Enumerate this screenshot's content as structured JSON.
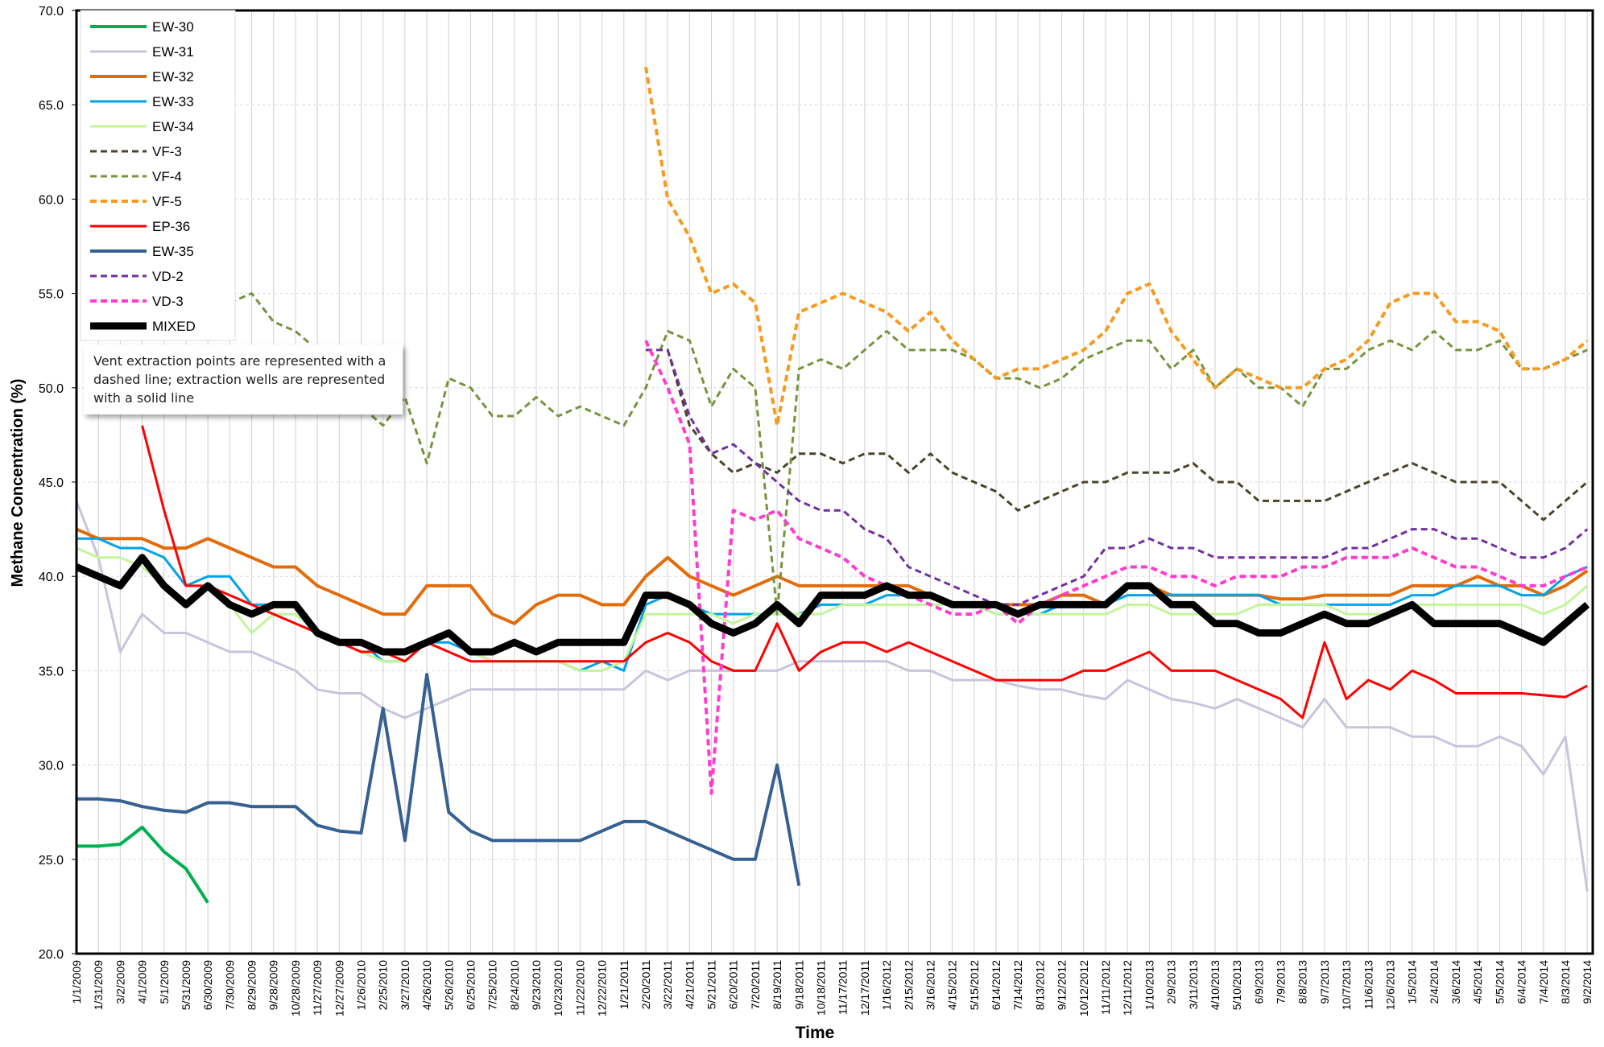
{
  "chart_data": {
    "type": "line",
    "y_label": "Methane Concentration (%)",
    "x_label": "Time",
    "annotation": "Vent extraction points are represented with a dashed line; extraction wells are represented with a solid line",
    "legend": "top-left",
    "grid": true,
    "ylim": [
      20,
      70
    ],
    "yticks": [
      {
        "value": 20,
        "label": "20.0"
      },
      {
        "value": 25,
        "label": "25.0"
      },
      {
        "value": 30,
        "label": "30.0"
      },
      {
        "value": 35,
        "label": "35.0"
      },
      {
        "value": 40,
        "label": "40.0"
      },
      {
        "value": 45,
        "label": "45.0"
      },
      {
        "value": 50,
        "label": "50.0"
      },
      {
        "value": 55,
        "label": "55.0"
      },
      {
        "value": 60,
        "label": "60.0"
      },
      {
        "value": 65,
        "label": "65.0"
      },
      {
        "value": 70,
        "label": "70.0"
      }
    ],
    "categories": [
      "1/1/2009",
      "1/31/2009",
      "3/2/2009",
      "4/1/2009",
      "5/1/2009",
      "5/31/2009",
      "6/30/2009",
      "7/30/2009",
      "8/29/2009",
      "9/28/2009",
      "10/28/2009",
      "11/27/2009",
      "12/27/2009",
      "1/26/2010",
      "2/25/2010",
      "3/27/2010",
      "4/26/2010",
      "5/26/2010",
      "6/25/2010",
      "7/25/2010",
      "8/24/2010",
      "9/23/2010",
      "10/23/2010",
      "11/22/2010",
      "12/22/2010",
      "1/21/2011",
      "2/20/2011",
      "3/22/2011",
      "4/21/2011",
      "5/21/2011",
      "6/20/2011",
      "7/20/2011",
      "8/19/2011",
      "9/18/2011",
      "10/18/2011",
      "11/17/2011",
      "12/17/2011",
      "1/16/2012",
      "2/15/2012",
      "3/16/2012",
      "4/15/2012",
      "5/15/2012",
      "6/14/2012",
      "7/14/2012",
      "8/13/2012",
      "9/12/2012",
      "10/12/2012",
      "11/11/2012",
      "12/11/2012",
      "1/10/2013",
      "2/9/2013",
      "3/11/2013",
      "4/10/2013",
      "5/10/2013",
      "6/9/2013",
      "7/9/2013",
      "8/8/2013",
      "9/7/2013",
      "10/7/2013",
      "11/6/2013",
      "12/6/2013",
      "1/5/2014",
      "2/4/2014",
      "3/6/2014",
      "4/5/2014",
      "5/5/2014",
      "6/4/2014",
      "7/4/2014",
      "8/3/2014",
      "9/2/2014"
    ],
    "series": [
      {
        "name": "EW-30",
        "color": "#00b050",
        "style": "solid",
        "line_width": 4,
        "values": [
          25.7,
          25.7,
          25.8,
          26.7,
          25.4,
          24.5,
          22.7,
          null,
          null,
          null,
          null,
          null,
          null,
          null,
          null,
          null,
          null,
          null,
          null,
          null,
          null,
          null,
          null,
          null,
          null,
          null,
          null,
          null,
          null,
          null,
          null,
          null,
          null,
          null,
          null,
          null,
          null,
          null,
          null,
          null,
          null,
          null,
          null,
          null,
          null,
          null,
          null,
          null,
          null,
          null,
          null,
          null,
          null,
          null,
          null,
          null,
          null,
          null,
          null,
          null,
          null,
          null,
          null,
          null,
          null,
          null,
          null,
          null,
          null,
          null
        ]
      },
      {
        "name": "EW-31",
        "color": "#c9c3dc",
        "style": "solid",
        "line_width": 3,
        "values": [
          44,
          41,
          36,
          38,
          37,
          37,
          36.5,
          36,
          36,
          35.5,
          35,
          34,
          33.8,
          33.8,
          33,
          32.5,
          33,
          33.5,
          34,
          34,
          34,
          34,
          34,
          34,
          34,
          34,
          35,
          34.5,
          35,
          35,
          35,
          35,
          35,
          35.5,
          35.5,
          35.5,
          35.5,
          35.5,
          35,
          35,
          34.5,
          34.5,
          34.5,
          34.2,
          34,
          34,
          33.7,
          33.5,
          34.5,
          34,
          33.5,
          33.3,
          33,
          33.5,
          33,
          32.5,
          32,
          33.5,
          32,
          32,
          32,
          31.5,
          31.5,
          31,
          31,
          31.5,
          31,
          29.5,
          31.5,
          23.3
        ]
      },
      {
        "name": "EW-32",
        "color": "#e36c0a",
        "style": "solid",
        "line_width": 4,
        "values": [
          42.5,
          42,
          42,
          42,
          41.5,
          41.5,
          42,
          41.5,
          41,
          40.5,
          40.5,
          39.5,
          39,
          38.5,
          38,
          38,
          39.5,
          39.5,
          39.5,
          38,
          37.5,
          38.5,
          39,
          39,
          38.5,
          38.5,
          40,
          41,
          40,
          39.5,
          39,
          39.5,
          40,
          39.5,
          39.5,
          39.5,
          39.5,
          39.5,
          39.5,
          39,
          38.5,
          38.5,
          38.5,
          38.5,
          38.5,
          39,
          39,
          38.5,
          39.5,
          39.5,
          39,
          39,
          39,
          39,
          39,
          38.8,
          38.8,
          39,
          39,
          39,
          39,
          39.5,
          39.5,
          39.5,
          40,
          39.5,
          39.5,
          39,
          39.5,
          40.3
        ]
      },
      {
        "name": "EW-33",
        "color": "#00a2e8",
        "style": "solid",
        "line_width": 3,
        "values": [
          42,
          42,
          41.5,
          41.5,
          41,
          39.5,
          40,
          40,
          38.5,
          38.5,
          38.5,
          37,
          36.5,
          36.5,
          35.5,
          35.5,
          36.5,
          36.5,
          36,
          35.5,
          35.5,
          35.5,
          35.5,
          35,
          35.5,
          35,
          38.5,
          39,
          38.5,
          38,
          38,
          38,
          38,
          38,
          38.5,
          38.5,
          38.5,
          39,
          39,
          39,
          38.5,
          38.5,
          38,
          38,
          38,
          38.5,
          38.5,
          38.5,
          39,
          39,
          39,
          39,
          39,
          39,
          39,
          38.5,
          38.5,
          38.5,
          38.5,
          38.5,
          38.5,
          39,
          39,
          39.5,
          39.5,
          39.5,
          39,
          39,
          40,
          40.5
        ]
      },
      {
        "name": "EW-34",
        "color": "#c3f59a",
        "style": "solid",
        "line_width": 3,
        "values": [
          41.5,
          41,
          41,
          40.5,
          39.5,
          38.5,
          39.5,
          38.5,
          37,
          38,
          38,
          37,
          36.5,
          36,
          35.5,
          35.5,
          36.5,
          37,
          36,
          35.5,
          35.5,
          35.5,
          35.5,
          35,
          35,
          35.5,
          38,
          38,
          38,
          38,
          37.5,
          38,
          38,
          38,
          38,
          38.5,
          38.5,
          38.5,
          38.5,
          38.5,
          38.5,
          38.5,
          38,
          38,
          38,
          38,
          38,
          38,
          38.5,
          38.5,
          38,
          38,
          38,
          38,
          38.5,
          38.5,
          38.5,
          38.5,
          38,
          38,
          38,
          38.5,
          38.5,
          38.5,
          38.5,
          38.5,
          38.5,
          38,
          38.5,
          39.5
        ]
      },
      {
        "name": "VF-3",
        "color": "#4a4428",
        "style": "dashed",
        "line_width": 3,
        "values": [
          null,
          null,
          null,
          null,
          null,
          null,
          null,
          null,
          null,
          null,
          null,
          null,
          null,
          null,
          null,
          null,
          null,
          null,
          null,
          null,
          null,
          null,
          null,
          null,
          null,
          null,
          null,
          52,
          48,
          46.5,
          45.5,
          46,
          45.5,
          46.5,
          46.5,
          46,
          46.5,
          46.5,
          45.5,
          46.5,
          45.5,
          45,
          44.5,
          43.5,
          44,
          44.5,
          45,
          45,
          45.5,
          45.5,
          45.5,
          46,
          45,
          45,
          44,
          44,
          44,
          44,
          44.5,
          45,
          45.5,
          46,
          45.5,
          45,
          45,
          45,
          44,
          43,
          44,
          45
        ]
      },
      {
        "name": "VF-4",
        "color": "#77933c",
        "style": "dashed",
        "line_width": 3,
        "values": [
          null,
          null,
          null,
          null,
          null,
          null,
          null,
          54.5,
          55,
          53.5,
          53,
          52,
          51,
          49,
          48,
          49.5,
          46,
          50.5,
          50,
          48.5,
          48.5,
          49.5,
          48.5,
          49,
          48.5,
          48,
          50,
          53,
          52.5,
          49,
          51,
          50,
          38,
          51,
          51.5,
          51,
          52,
          53,
          52,
          52,
          52,
          51.5,
          50.5,
          50.5,
          50,
          50.5,
          51.5,
          52,
          52.5,
          52.5,
          51,
          52,
          50,
          51,
          50,
          50,
          49,
          51,
          51,
          52,
          52.5,
          52,
          53,
          52,
          52,
          52.5,
          51,
          51,
          51.5,
          52
        ]
      },
      {
        "name": "VF-5",
        "color": "#f79a1e",
        "style": "dashed",
        "line_width": 4,
        "values": [
          null,
          null,
          null,
          null,
          null,
          null,
          null,
          null,
          null,
          null,
          null,
          null,
          null,
          null,
          null,
          null,
          null,
          null,
          null,
          null,
          null,
          null,
          null,
          null,
          null,
          null,
          67,
          60,
          58,
          55,
          55.5,
          54.5,
          48,
          54,
          54.5,
          55,
          54.5,
          54,
          53,
          54,
          52.5,
          51.5,
          50.5,
          51,
          51,
          51.5,
          52,
          53,
          55,
          55.5,
          53,
          51.5,
          50,
          51,
          50.5,
          50,
          50,
          51,
          51.5,
          52.5,
          54.5,
          55,
          55,
          53.5,
          53.5,
          53,
          51,
          51,
          51.5,
          52.5
        ]
      },
      {
        "name": "EP-36",
        "color": "#ff0000",
        "style": "solid",
        "line_width": 3,
        "values": [
          null,
          null,
          null,
          48,
          43.5,
          39.5,
          39.5,
          39,
          38.5,
          38,
          37.5,
          37,
          36.5,
          36,
          36,
          35.5,
          36.5,
          36,
          35.5,
          35.5,
          35.5,
          35.5,
          35.5,
          35.5,
          35.5,
          35.5,
          36.5,
          37,
          36.5,
          35.5,
          35,
          35,
          37.5,
          35,
          36,
          36.5,
          36.5,
          36,
          36.5,
          36,
          35.5,
          35,
          34.5,
          34.5,
          34.5,
          34.5,
          35,
          35,
          35.5,
          36,
          35,
          35,
          35,
          34.5,
          34,
          33.5,
          32.5,
          36.5,
          33.5,
          34.5,
          34,
          35,
          34.5,
          33.8,
          33.8,
          33.8,
          33.8,
          33.7,
          33.6,
          34.2
        ]
      },
      {
        "name": "EW-35",
        "color": "#366092",
        "style": "solid",
        "line_width": 4,
        "values": [
          28.2,
          28.2,
          28.1,
          27.8,
          27.6,
          27.5,
          28,
          28,
          27.8,
          27.8,
          27.8,
          26.8,
          26.5,
          26.4,
          33,
          26,
          34.8,
          27.5,
          26.5,
          26,
          26,
          26,
          26,
          26,
          26.5,
          27,
          27,
          26.5,
          26,
          25.5,
          25,
          25,
          30,
          23.6,
          null,
          null,
          null,
          null,
          null,
          null,
          null,
          null,
          null,
          null,
          null,
          null,
          null,
          null,
          null,
          null,
          null,
          null,
          null,
          null,
          null,
          null,
          null,
          null,
          null,
          null,
          null,
          null,
          null,
          null,
          null,
          null,
          null,
          null,
          null,
          null
        ]
      },
      {
        "name": "VD-2",
        "color": "#7030a0",
        "style": "dashed",
        "line_width": 3,
        "values": [
          null,
          null,
          null,
          null,
          null,
          null,
          null,
          null,
          null,
          null,
          null,
          null,
          null,
          null,
          null,
          null,
          null,
          null,
          null,
          null,
          null,
          null,
          null,
          null,
          null,
          null,
          52,
          52,
          48.5,
          46.5,
          47,
          46,
          45,
          44,
          43.5,
          43.5,
          42.5,
          42,
          40.5,
          40,
          39.5,
          39,
          38.5,
          38.5,
          39,
          39.5,
          40,
          41.5,
          41.5,
          42,
          41.5,
          41.5,
          41,
          41,
          41,
          41,
          41,
          41,
          41.5,
          41.5,
          42,
          42.5,
          42.5,
          42,
          42,
          41.5,
          41,
          41,
          41.5,
          42.5
        ]
      },
      {
        "name": "VD-3",
        "color": "#ff3ccf",
        "style": "dashed",
        "line_width": 4,
        "values": [
          null,
          null,
          null,
          null,
          null,
          null,
          null,
          null,
          null,
          null,
          null,
          null,
          null,
          null,
          null,
          null,
          null,
          null,
          null,
          null,
          null,
          null,
          null,
          null,
          null,
          null,
          52.5,
          50,
          47,
          28.5,
          43.5,
          43,
          43.5,
          42,
          41.5,
          41,
          40,
          39.5,
          39,
          38.5,
          38,
          38,
          38.5,
          37.5,
          38.5,
          39,
          39.5,
          40,
          40.5,
          40.5,
          40,
          40,
          39.5,
          40,
          40,
          40,
          40.5,
          40.5,
          41,
          41,
          41,
          41.5,
          41,
          40.5,
          40.5,
          40,
          39.5,
          39.5,
          40,
          40.5
        ]
      },
      {
        "name": "MIXED",
        "color": "#000000",
        "style": "solid",
        "line_width": 9,
        "values": [
          40.5,
          40,
          39.5,
          41,
          39.5,
          38.5,
          39.5,
          38.5,
          38,
          38.5,
          38.5,
          37,
          36.5,
          36.5,
          36,
          36,
          36.5,
          37,
          36,
          36,
          36.5,
          36,
          36.5,
          36.5,
          36.5,
          36.5,
          39,
          39,
          38.5,
          37.5,
          37,
          37.5,
          38.5,
          37.5,
          39,
          39,
          39,
          39.5,
          39,
          39,
          38.5,
          38.5,
          38.5,
          38,
          38.5,
          38.5,
          38.5,
          38.5,
          39.5,
          39.5,
          38.5,
          38.5,
          37.5,
          37.5,
          37,
          37,
          37.5,
          38,
          37.5,
          37.5,
          38,
          38.5,
          37.5,
          37.5,
          37.5,
          37.5,
          37,
          36.5,
          37.5,
          38.5
        ]
      }
    ]
  }
}
